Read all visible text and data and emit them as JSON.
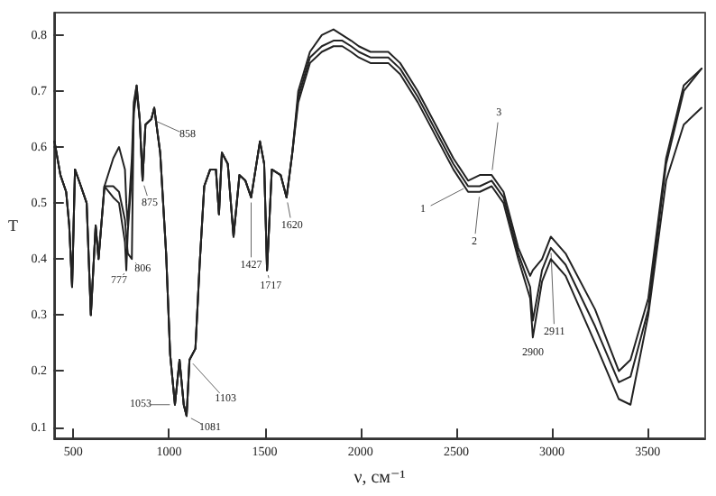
{
  "chart_data": {
    "type": "line",
    "xlabel": "ν, см⁻¹",
    "ylabel": "T",
    "x": [
      402,
      433,
      463,
      479,
      494,
      509,
      540,
      570,
      592,
      617,
      632,
      663,
      709,
      739,
      770,
      777,
      785,
      806,
      816,
      831,
      847,
      862,
      877,
      908,
      923,
      954,
      985,
      1006,
      1031,
      1055,
      1077,
      1092,
      1107,
      1138,
      1160,
      1184,
      1215,
      1245,
      1261,
      1276,
      1307,
      1337,
      1368,
      1399,
      1429,
      1475,
      1497,
      1512,
      1537,
      1583,
      1614,
      1644,
      1675,
      1736,
      1798,
      1859,
      1905,
      1951,
      1991,
      2052,
      2145,
      2207,
      2299,
      2392,
      2485,
      2562,
      2623,
      2685,
      2747,
      2824,
      2886,
      2900,
      2948,
      2994,
      3071,
      3225,
      3349,
      3410,
      3503,
      3596,
      3688,
      3781
    ],
    "series": [
      {
        "color": "#222222",
        "values": [
          0.61,
          0.55,
          0.52,
          0.46,
          0.35,
          0.56,
          0.53,
          0.5,
          0.3,
          0.46,
          0.4,
          0.53,
          0.53,
          0.52,
          0.47,
          0.44,
          0.41,
          0.4,
          0.67,
          0.71,
          0.65,
          0.54,
          0.64,
          0.65,
          0.67,
          0.59,
          0.41,
          0.23,
          0.14,
          0.22,
          0.14,
          0.12,
          0.22,
          0.24,
          0.39,
          0.53,
          0.56,
          0.56,
          0.48,
          0.59,
          0.57,
          0.44,
          0.55,
          0.54,
          0.51,
          0.61,
          0.57,
          0.38,
          0.56,
          0.55,
          0.51,
          0.59,
          0.69,
          0.76,
          0.78,
          0.79,
          0.79,
          0.78,
          0.77,
          0.76,
          0.76,
          0.74,
          0.69,
          0.63,
          0.57,
          0.53,
          0.53,
          0.54,
          0.51,
          0.41,
          0.35,
          0.29,
          0.38,
          0.42,
          0.39,
          0.28,
          0.18,
          0.19,
          0.31,
          0.57,
          0.7,
          0.74
        ]
      },
      {
        "color": "#222222",
        "values": [
          0.61,
          0.55,
          0.52,
          0.46,
          0.35,
          0.56,
          0.53,
          0.5,
          0.3,
          0.46,
          0.4,
          0.53,
          0.51,
          0.5,
          0.43,
          0.38,
          0.45,
          0.55,
          0.66,
          0.7,
          0.65,
          0.54,
          0.64,
          0.65,
          0.67,
          0.59,
          0.41,
          0.23,
          0.14,
          0.22,
          0.14,
          0.12,
          0.22,
          0.24,
          0.39,
          0.53,
          0.56,
          0.56,
          0.48,
          0.59,
          0.57,
          0.44,
          0.55,
          0.54,
          0.51,
          0.61,
          0.57,
          0.38,
          0.56,
          0.55,
          0.51,
          0.59,
          0.68,
          0.75,
          0.77,
          0.78,
          0.78,
          0.77,
          0.76,
          0.75,
          0.75,
          0.73,
          0.68,
          0.62,
          0.56,
          0.52,
          0.52,
          0.53,
          0.5,
          0.4,
          0.33,
          0.26,
          0.36,
          0.4,
          0.37,
          0.25,
          0.15,
          0.14,
          0.3,
          0.54,
          0.64,
          0.67
        ]
      },
      {
        "color": "#222222",
        "values": [
          0.61,
          0.55,
          0.52,
          0.46,
          0.35,
          0.56,
          0.53,
          0.5,
          0.3,
          0.46,
          0.4,
          0.53,
          0.58,
          0.6,
          0.56,
          0.5,
          0.46,
          0.58,
          0.68,
          0.71,
          0.65,
          0.54,
          0.64,
          0.65,
          0.67,
          0.59,
          0.41,
          0.23,
          0.14,
          0.22,
          0.14,
          0.12,
          0.22,
          0.24,
          0.39,
          0.53,
          0.56,
          0.56,
          0.48,
          0.59,
          0.57,
          0.44,
          0.55,
          0.54,
          0.51,
          0.61,
          0.57,
          0.38,
          0.56,
          0.55,
          0.51,
          0.59,
          0.7,
          0.77,
          0.8,
          0.81,
          0.8,
          0.79,
          0.78,
          0.77,
          0.77,
          0.75,
          0.7,
          0.64,
          0.58,
          0.54,
          0.55,
          0.55,
          0.52,
          0.42,
          0.37,
          0.38,
          0.4,
          0.44,
          0.41,
          0.31,
          0.2,
          0.22,
          0.33,
          0.58,
          0.71,
          0.74
        ]
      }
    ],
    "xlim": [
      400,
      3800
    ],
    "xticks": [
      500,
      1000,
      1500,
      2000,
      2500,
      3000,
      3500
    ],
    "ylim": [
      0.08,
      0.84
    ],
    "yticks": [
      0.1,
      0.2,
      0.3,
      0.4,
      0.5,
      0.6,
      0.7,
      0.8
    ],
    "grid": false,
    "marker": "none",
    "line_style": "solid",
    "annotations": [
      {
        "text": "858",
        "x": 908,
        "y": 0.65
      },
      {
        "text": "875",
        "x": 862,
        "y": 0.54
      },
      {
        "text": "806",
        "x": 806,
        "y": 0.4
      },
      {
        "text": "777",
        "x": 777,
        "y": 0.38
      },
      {
        "text": "1427",
        "x": 1429,
        "y": 0.51
      },
      {
        "text": "1717",
        "x": 1512,
        "y": 0.38
      },
      {
        "text": "1620",
        "x": 1614,
        "y": 0.51
      },
      {
        "text": "1053",
        "x": 1031,
        "y": 0.14
      },
      {
        "text": "1081",
        "x": 1092,
        "y": 0.12
      },
      {
        "text": "1103",
        "x": 1107,
        "y": 0.22
      },
      {
        "text": "3",
        "x": 2685,
        "y": 0.55
      },
      {
        "text": "1",
        "x": 2562,
        "y": 0.53
      },
      {
        "text": "2",
        "x": 2623,
        "y": 0.52
      },
      {
        "text": "2911",
        "x": 2994,
        "y": 0.42
      },
      {
        "text": "2900",
        "x": 2900,
        "y": 0.26
      }
    ]
  }
}
